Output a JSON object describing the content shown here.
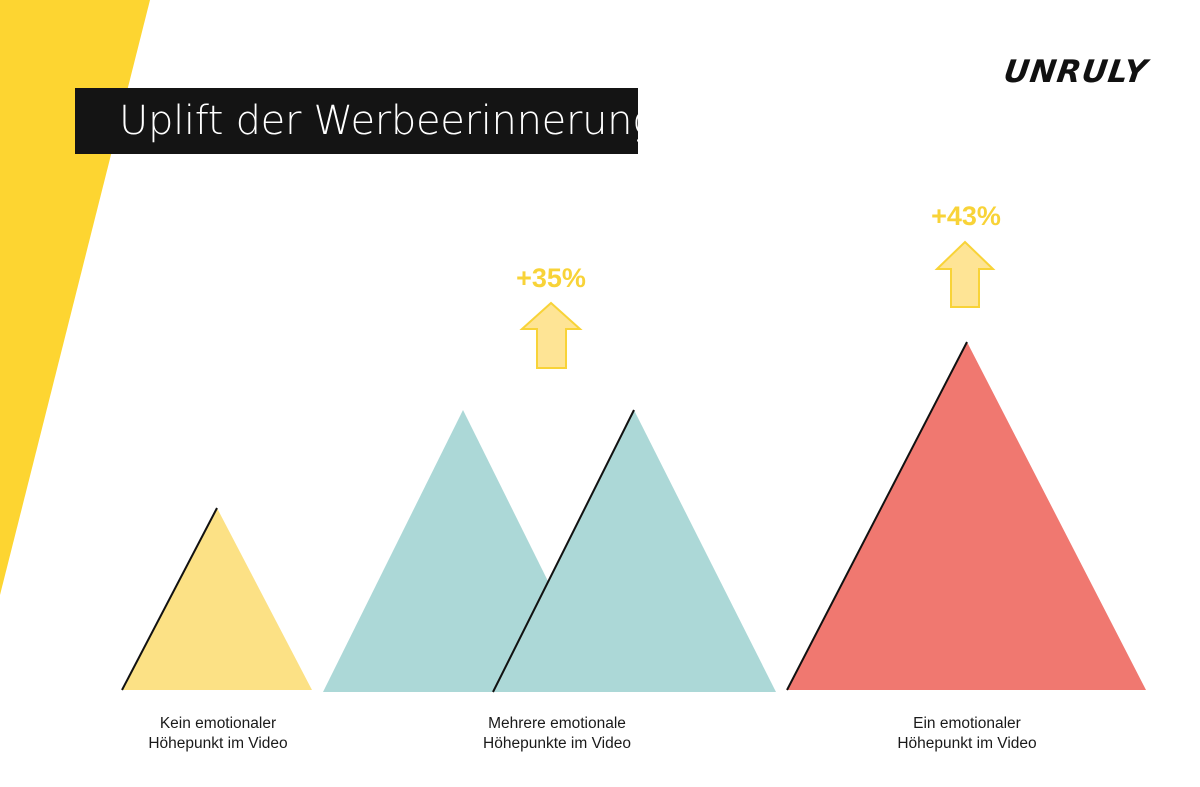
{
  "title": "Uplift der Werbeerinnerung",
  "brand": "UNRULY",
  "colors": {
    "band": "#FDD531",
    "none": "#FCE185",
    "multiple": "#ACD8D7",
    "single": "#F07870",
    "uplift_text": "#F8D338",
    "arrow_fill": "#FEE495",
    "arrow_stroke": "#F8D338"
  },
  "chart_data": {
    "type": "bar",
    "title": "Uplift der Werbeerinnerung",
    "categories": [
      {
        "line1": "Kein emotionaler",
        "line2": "Höhepunkt im Video"
      },
      {
        "line1": "Mehrere emotionale",
        "line2": "Höhepunkte im Video"
      },
      {
        "line1": "Ein emotionaler",
        "line2": "Höhepunkt im Video"
      }
    ],
    "uplift_labels": [
      "",
      "+35%",
      "+43%"
    ],
    "uplift_values": [
      0,
      35,
      43
    ],
    "icons": [
      "",
      "up-arrow-icon",
      "up-arrow-icon"
    ]
  }
}
